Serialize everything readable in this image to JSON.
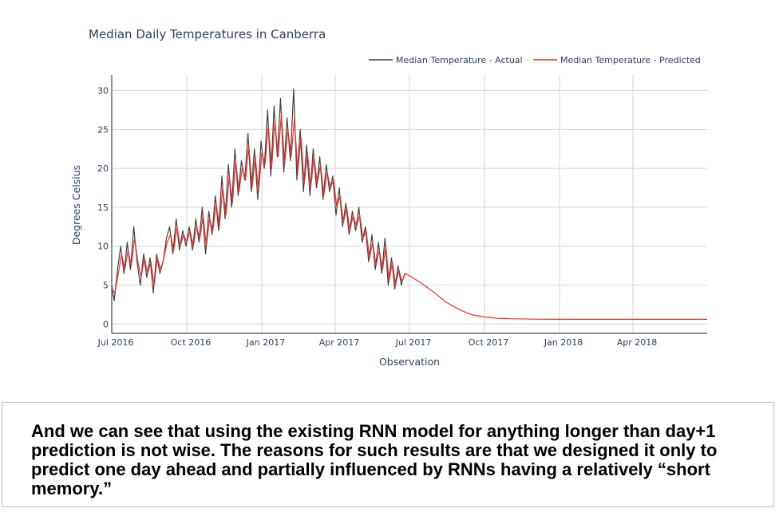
{
  "chart_data": {
    "type": "line",
    "title": "Median Daily Temperatures in Canberra",
    "xlabel": "Observation",
    "ylabel": "Degrees Celsius",
    "xlim": [
      "2016-07-01",
      "2018-07-01"
    ],
    "ylim": [
      -1.2,
      32
    ],
    "y_ticks": [
      0,
      5,
      10,
      15,
      20,
      25,
      30
    ],
    "x_ticks": [
      {
        "date": "2016-07-01",
        "label": "Jul 2016"
      },
      {
        "date": "2016-10-01",
        "label": "Oct 2016"
      },
      {
        "date": "2017-01-01",
        "label": "Jan 2017"
      },
      {
        "date": "2017-04-01",
        "label": "Apr 2017"
      },
      {
        "date": "2017-07-01",
        "label": "Jul 2017"
      },
      {
        "date": "2017-10-01",
        "label": "Oct 2017"
      },
      {
        "date": "2018-01-01",
        "label": "Jan 2018"
      },
      {
        "date": "2018-04-01",
        "label": "Apr 2018"
      }
    ],
    "grid": true,
    "legend_position": "top-right",
    "series": [
      {
        "name": "Median Temperature - Actual",
        "color": "#404040",
        "points": [
          [
            "2016-07-01",
            5.0
          ],
          [
            "2016-07-04",
            3.0
          ],
          [
            "2016-07-08",
            7.0
          ],
          [
            "2016-07-12",
            10.0
          ],
          [
            "2016-07-16",
            6.5
          ],
          [
            "2016-07-20",
            10.5
          ],
          [
            "2016-07-24",
            7.0
          ],
          [
            "2016-07-28",
            12.5
          ],
          [
            "2016-08-01",
            8.0
          ],
          [
            "2016-08-05",
            5.0
          ],
          [
            "2016-08-09",
            9.0
          ],
          [
            "2016-08-13",
            6.0
          ],
          [
            "2016-08-17",
            8.5
          ],
          [
            "2016-08-21",
            4.0
          ],
          [
            "2016-08-25",
            9.0
          ],
          [
            "2016-08-29",
            6.5
          ],
          [
            "2016-09-02",
            8.0
          ],
          [
            "2016-09-06",
            11.0
          ],
          [
            "2016-09-10",
            12.5
          ],
          [
            "2016-09-14",
            9.0
          ],
          [
            "2016-09-18",
            13.5
          ],
          [
            "2016-09-22",
            9.5
          ],
          [
            "2016-09-26",
            12.0
          ],
          [
            "2016-09-30",
            10.0
          ],
          [
            "2016-10-04",
            12.5
          ],
          [
            "2016-10-08",
            9.5
          ],
          [
            "2016-10-12",
            13.5
          ],
          [
            "2016-10-16",
            10.5
          ],
          [
            "2016-10-20",
            15.0
          ],
          [
            "2016-10-24",
            9.0
          ],
          [
            "2016-10-28",
            14.5
          ],
          [
            "2016-11-01",
            11.5
          ],
          [
            "2016-11-05",
            16.5
          ],
          [
            "2016-11-09",
            12.0
          ],
          [
            "2016-11-13",
            19.0
          ],
          [
            "2016-11-17",
            13.5
          ],
          [
            "2016-11-21",
            20.5
          ],
          [
            "2016-11-25",
            15.0
          ],
          [
            "2016-11-29",
            22.5
          ],
          [
            "2016-12-03",
            16.5
          ],
          [
            "2016-12-07",
            21.0
          ],
          [
            "2016-12-11",
            18.5
          ],
          [
            "2016-12-15",
            24.5
          ],
          [
            "2016-12-19",
            17.0
          ],
          [
            "2016-12-23",
            22.5
          ],
          [
            "2016-12-27",
            16.0
          ],
          [
            "2016-12-31",
            23.5
          ],
          [
            "2017-01-04",
            20.0
          ],
          [
            "2017-01-08",
            27.5
          ],
          [
            "2017-01-12",
            19.0
          ],
          [
            "2017-01-16",
            28.0
          ],
          [
            "2017-01-20",
            21.5
          ],
          [
            "2017-01-24",
            29.0
          ],
          [
            "2017-01-28",
            19.5
          ],
          [
            "2017-02-01",
            26.5
          ],
          [
            "2017-02-05",
            21.0
          ],
          [
            "2017-02-09",
            30.2
          ],
          [
            "2017-02-13",
            18.5
          ],
          [
            "2017-02-17",
            25.0
          ],
          [
            "2017-02-21",
            17.0
          ],
          [
            "2017-02-25",
            23.0
          ],
          [
            "2017-03-01",
            16.5
          ],
          [
            "2017-03-05",
            22.5
          ],
          [
            "2017-03-09",
            17.5
          ],
          [
            "2017-03-13",
            21.5
          ],
          [
            "2017-03-17",
            16.0
          ],
          [
            "2017-03-21",
            20.5
          ],
          [
            "2017-03-25",
            17.0
          ],
          [
            "2017-03-29",
            19.0
          ],
          [
            "2017-04-02",
            14.0
          ],
          [
            "2017-04-06",
            17.5
          ],
          [
            "2017-04-10",
            12.5
          ],
          [
            "2017-04-14",
            15.5
          ],
          [
            "2017-04-18",
            11.5
          ],
          [
            "2017-04-22",
            14.5
          ],
          [
            "2017-04-26",
            12.0
          ],
          [
            "2017-04-30",
            15.0
          ],
          [
            "2017-05-04",
            10.5
          ],
          [
            "2017-05-08",
            12.5
          ],
          [
            "2017-05-12",
            8.0
          ],
          [
            "2017-05-16",
            11.5
          ],
          [
            "2017-05-20",
            7.0
          ],
          [
            "2017-05-24",
            10.5
          ],
          [
            "2017-05-28",
            6.5
          ],
          [
            "2017-06-01",
            11.0
          ],
          [
            "2017-06-05",
            5.0
          ],
          [
            "2017-06-09",
            8.5
          ],
          [
            "2017-06-13",
            4.5
          ],
          [
            "2017-06-17",
            7.5
          ],
          [
            "2017-06-21",
            5.0
          ],
          [
            "2017-06-25",
            6.5
          ]
        ]
      },
      {
        "name": "Median Temperature - Predicted",
        "color": "#e8302a",
        "points": [
          [
            "2016-07-01",
            4.5
          ],
          [
            "2016-07-05",
            4.0
          ],
          [
            "2016-07-09",
            6.5
          ],
          [
            "2016-07-13",
            9.0
          ],
          [
            "2016-07-17",
            7.0
          ],
          [
            "2016-07-21",
            9.5
          ],
          [
            "2016-07-25",
            7.5
          ],
          [
            "2016-07-29",
            11.0
          ],
          [
            "2016-08-02",
            8.0
          ],
          [
            "2016-08-06",
            6.0
          ],
          [
            "2016-08-10",
            8.5
          ],
          [
            "2016-08-14",
            6.5
          ],
          [
            "2016-08-18",
            8.0
          ],
          [
            "2016-08-22",
            5.0
          ],
          [
            "2016-08-26",
            8.5
          ],
          [
            "2016-08-30",
            7.0
          ],
          [
            "2016-09-03",
            8.5
          ],
          [
            "2016-09-07",
            10.5
          ],
          [
            "2016-09-11",
            11.5
          ],
          [
            "2016-09-15",
            9.5
          ],
          [
            "2016-09-19",
            12.5
          ],
          [
            "2016-09-23",
            10.0
          ],
          [
            "2016-09-27",
            11.5
          ],
          [
            "2016-10-01",
            10.5
          ],
          [
            "2016-10-05",
            12.0
          ],
          [
            "2016-10-09",
            10.0
          ],
          [
            "2016-10-13",
            12.5
          ],
          [
            "2016-10-17",
            11.0
          ],
          [
            "2016-10-21",
            14.0
          ],
          [
            "2016-10-25",
            10.0
          ],
          [
            "2016-10-29",
            13.5
          ],
          [
            "2016-11-02",
            12.0
          ],
          [
            "2016-11-06",
            15.5
          ],
          [
            "2016-11-10",
            12.5
          ],
          [
            "2016-11-14",
            17.5
          ],
          [
            "2016-11-18",
            14.0
          ],
          [
            "2016-11-22",
            19.0
          ],
          [
            "2016-11-26",
            15.5
          ],
          [
            "2016-11-30",
            21.0
          ],
          [
            "2016-12-04",
            17.0
          ],
          [
            "2016-12-08",
            20.0
          ],
          [
            "2016-12-12",
            18.5
          ],
          [
            "2016-12-16",
            23.0
          ],
          [
            "2016-12-20",
            17.5
          ],
          [
            "2016-12-24",
            21.5
          ],
          [
            "2016-12-28",
            17.0
          ],
          [
            "2017-01-01",
            22.0
          ],
          [
            "2017-01-05",
            20.5
          ],
          [
            "2017-01-09",
            25.5
          ],
          [
            "2017-01-13",
            20.0
          ],
          [
            "2017-01-17",
            26.0
          ],
          [
            "2017-01-21",
            21.5
          ],
          [
            "2017-01-25",
            27.0
          ],
          [
            "2017-01-29",
            20.5
          ],
          [
            "2017-02-02",
            25.0
          ],
          [
            "2017-02-06",
            21.5
          ],
          [
            "2017-02-10",
            26.5
          ],
          [
            "2017-02-14",
            19.5
          ],
          [
            "2017-02-18",
            24.0
          ],
          [
            "2017-02-22",
            18.0
          ],
          [
            "2017-02-26",
            22.0
          ],
          [
            "2017-03-02",
            17.5
          ],
          [
            "2017-03-06",
            21.5
          ],
          [
            "2017-03-10",
            18.0
          ],
          [
            "2017-03-14",
            20.5
          ],
          [
            "2017-03-18",
            16.5
          ],
          [
            "2017-03-22",
            19.5
          ],
          [
            "2017-03-26",
            17.5
          ],
          [
            "2017-03-30",
            18.5
          ],
          [
            "2017-04-03",
            15.0
          ],
          [
            "2017-04-07",
            16.5
          ],
          [
            "2017-04-11",
            13.0
          ],
          [
            "2017-04-15",
            15.0
          ],
          [
            "2017-04-19",
            12.0
          ],
          [
            "2017-04-23",
            14.0
          ],
          [
            "2017-04-27",
            12.5
          ],
          [
            "2017-05-01",
            14.0
          ],
          [
            "2017-05-05",
            11.0
          ],
          [
            "2017-05-09",
            12.0
          ],
          [
            "2017-05-13",
            8.5
          ],
          [
            "2017-05-17",
            10.5
          ],
          [
            "2017-05-21",
            7.5
          ],
          [
            "2017-05-25",
            9.5
          ],
          [
            "2017-05-29",
            7.0
          ],
          [
            "2017-06-02",
            10.0
          ],
          [
            "2017-06-06",
            5.5
          ],
          [
            "2017-06-10",
            8.0
          ],
          [
            "2017-06-14",
            5.0
          ],
          [
            "2017-06-18",
            7.0
          ],
          [
            "2017-06-22",
            5.5
          ],
          [
            "2017-06-26",
            6.5
          ],
          [
            "2017-07-01",
            6.2
          ],
          [
            "2017-07-15",
            5.3
          ],
          [
            "2017-08-01",
            4.0
          ],
          [
            "2017-08-15",
            2.8
          ],
          [
            "2017-09-01",
            1.8
          ],
          [
            "2017-09-15",
            1.2
          ],
          [
            "2017-10-01",
            0.9
          ],
          [
            "2017-10-15",
            0.75
          ],
          [
            "2017-11-01",
            0.68
          ],
          [
            "2017-12-01",
            0.62
          ],
          [
            "2018-01-01",
            0.6
          ],
          [
            "2018-03-01",
            0.6
          ],
          [
            "2018-05-01",
            0.6
          ],
          [
            "2018-07-01",
            0.6
          ]
        ]
      }
    ]
  },
  "caption": {
    "text": "And we can see that using the existing RNN model for anything longer than day+1 prediction is not wise. The reasons for such results are that we designed it only to predict one day ahead and partially influenced by RNNs having a relatively “short memory.”"
  }
}
